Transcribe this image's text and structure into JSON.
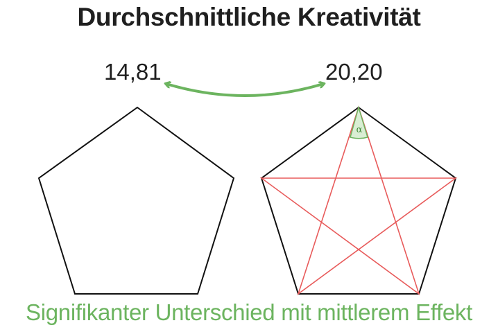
{
  "title": "Durchschnittliche Kreativität",
  "values": {
    "left": "14,81",
    "right": "20,20"
  },
  "angle_label": "α",
  "footer": "Signifikanter Unterschied mit mittlerem Effekt",
  "colors": {
    "text": "#1f1f1f",
    "accent_green": "#6cb45f",
    "star_red": "#e85b5b",
    "outline": "#111111"
  }
}
